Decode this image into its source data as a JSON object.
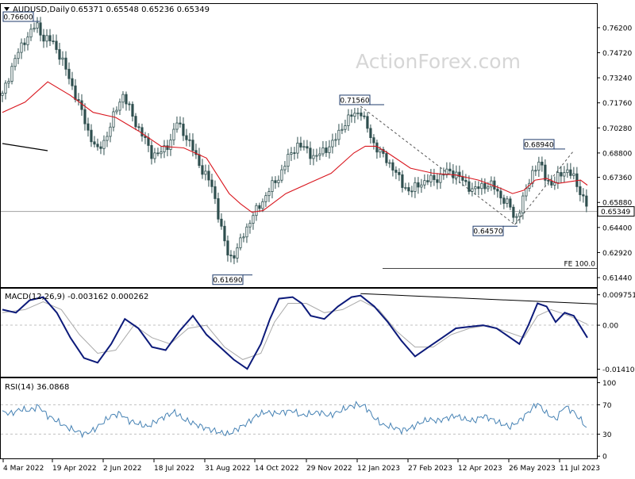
{
  "header": {
    "symbol": "AUDUSD,Daily",
    "ohlc": "0.65371 0.65548 0.65236 0.65349"
  },
  "watermark": "ActionForex.com",
  "colors": {
    "candle": "#2f4f4f",
    "ma": "#d9161e",
    "macd": "#0c1a7a",
    "signal": "#a9a9a9",
    "rsi": "#4682b4",
    "frame": "#000000",
    "grid_dashed": "#c0c0c0"
  },
  "chart_data": [
    {
      "type": "candlestick",
      "name": "price",
      "y_range": [
        0.6088,
        0.776
      ],
      "y_ticks": [
        "0.76200",
        "0.74720",
        "0.73240",
        "0.71760",
        "0.70280",
        "0.68800",
        "0.67360",
        "0.65880",
        "0.64400",
        "0.62920",
        "0.61440"
      ],
      "y_tick_values": [
        0.762,
        0.7472,
        0.7324,
        0.7176,
        0.7028,
        0.688,
        0.6736,
        0.6588,
        0.644,
        0.6292,
        0.6144
      ],
      "x_tick_labels": [
        "4 Mar 2022",
        "19 Apr 2022",
        "2 Jun 2022",
        "18 Jul 2022",
        "31 Aug 2022",
        "14 Oct 2022",
        "29 Nov 2022",
        "12 Jan 2023",
        "27 Feb 2023",
        "12 Apr 2023",
        "26 May 2023",
        "11 Jul 2023"
      ],
      "current_price": "0.65349",
      "current_value": 0.65349,
      "annotations": [
        {
          "label": "0.76600",
          "value": 0.766
        },
        {
          "label": "0.71560",
          "value": 0.7156
        },
        {
          "label": "0.61690",
          "value": 0.6169
        },
        {
          "label": "0.68940",
          "value": 0.6894
        },
        {
          "label": "0.64570",
          "value": 0.6457
        }
      ],
      "fe_label": "FE 100.0",
      "fe_value": 0.6198,
      "path": [
        [
          0,
          0.722
        ],
        [
          5,
          0.742
        ],
        [
          10,
          0.755
        ],
        [
          15,
          0.764
        ],
        [
          18,
          0.756
        ],
        [
          22,
          0.754
        ],
        [
          26,
          0.744
        ],
        [
          30,
          0.73
        ],
        [
          34,
          0.716
        ],
        [
          38,
          0.7
        ],
        [
          42,
          0.689
        ],
        [
          46,
          0.698
        ],
        [
          50,
          0.713
        ],
        [
          53,
          0.723
        ],
        [
          56,
          0.714
        ],
        [
          59,
          0.705
        ],
        [
          62,
          0.698
        ],
        [
          66,
          0.687
        ],
        [
          70,
          0.688
        ],
        [
          74,
          0.695
        ],
        [
          77,
          0.706
        ],
        [
          80,
          0.7
        ],
        [
          84,
          0.69
        ],
        [
          88,
          0.678
        ],
        [
          92,
          0.67
        ],
        [
          94,
          0.66
        ],
        [
          96,
          0.646
        ],
        [
          98,
          0.635
        ],
        [
          100,
          0.626
        ],
        [
          103,
          0.629
        ],
        [
          106,
          0.639
        ],
        [
          110,
          0.65
        ],
        [
          114,
          0.658
        ],
        [
          118,
          0.667
        ],
        [
          122,
          0.674
        ],
        [
          126,
          0.685
        ],
        [
          130,
          0.693
        ],
        [
          134,
          0.69
        ],
        [
          138,
          0.685
        ],
        [
          142,
          0.69
        ],
        [
          146,
          0.694
        ],
        [
          150,
          0.704
        ],
        [
          154,
          0.71
        ],
        [
          158,
          0.713
        ],
        [
          161,
          0.702
        ],
        [
          164,
          0.693
        ],
        [
          168,
          0.686
        ],
        [
          172,
          0.68
        ],
        [
          176,
          0.67
        ],
        [
          180,
          0.665
        ],
        [
          184,
          0.67
        ],
        [
          188,
          0.672
        ],
        [
          192,
          0.673
        ],
        [
          196,
          0.677
        ],
        [
          200,
          0.676
        ],
        [
          204,
          0.67
        ],
        [
          208,
          0.666
        ],
        [
          212,
          0.669
        ],
        [
          216,
          0.669
        ],
        [
          220,
          0.662
        ],
        [
          224,
          0.656
        ],
        [
          226,
          0.648
        ],
        [
          228,
          0.654
        ],
        [
          231,
          0.666
        ],
        [
          234,
          0.678
        ],
        [
          237,
          0.682
        ],
        [
          240,
          0.672
        ],
        [
          243,
          0.669
        ],
        [
          246,
          0.676
        ],
        [
          249,
          0.678
        ],
        [
          252,
          0.673
        ],
        [
          256,
          0.662
        ],
        [
          258,
          0.656
        ]
      ],
      "ma_path": [
        [
          0,
          0.712
        ],
        [
          10,
          0.718
        ],
        [
          20,
          0.73
        ],
        [
          30,
          0.722
        ],
        [
          40,
          0.712
        ],
        [
          50,
          0.709
        ],
        [
          60,
          0.701
        ],
        [
          70,
          0.692
        ],
        [
          80,
          0.691
        ],
        [
          90,
          0.685
        ],
        [
          100,
          0.664
        ],
        [
          105,
          0.658
        ],
        [
          110,
          0.653
        ],
        [
          115,
          0.654
        ],
        [
          125,
          0.664
        ],
        [
          135,
          0.67
        ],
        [
          145,
          0.676
        ],
        [
          155,
          0.688
        ],
        [
          160,
          0.692
        ],
        [
          165,
          0.692
        ],
        [
          170,
          0.688
        ],
        [
          180,
          0.679
        ],
        [
          190,
          0.676
        ],
        [
          200,
          0.675
        ],
        [
          210,
          0.672
        ],
        [
          220,
          0.667
        ],
        [
          225,
          0.664
        ],
        [
          230,
          0.666
        ],
        [
          235,
          0.672
        ],
        [
          240,
          0.673
        ],
        [
          245,
          0.67
        ],
        [
          250,
          0.671
        ],
        [
          255,
          0.672
        ],
        [
          258,
          0.669
        ]
      ]
    },
    {
      "type": "line",
      "name": "MACD(12,26,9) -0.003162 0.000262",
      "y_range": [
        -0.0165,
        0.0117
      ],
      "y_ticks": [
        "0.009751",
        "0.00",
        "-0.014107"
      ],
      "y_tick_values": [
        0.009751,
        0.0,
        -0.014107
      ],
      "macd_path": [
        [
          0,
          0.005
        ],
        [
          6,
          0.004
        ],
        [
          12,
          0.008
        ],
        [
          18,
          0.009
        ],
        [
          24,
          0.004
        ],
        [
          30,
          -0.004
        ],
        [
          36,
          -0.0105
        ],
        [
          42,
          -0.012
        ],
        [
          48,
          -0.006
        ],
        [
          54,
          0.002
        ],
        [
          60,
          -0.001
        ],
        [
          66,
          -0.007
        ],
        [
          72,
          -0.008
        ],
        [
          78,
          -0.002
        ],
        [
          84,
          0.003
        ],
        [
          90,
          -0.003
        ],
        [
          96,
          -0.007
        ],
        [
          102,
          -0.011
        ],
        [
          108,
          -0.014
        ],
        [
          114,
          -0.006
        ],
        [
          118,
          0.002
        ],
        [
          122,
          0.0085
        ],
        [
          128,
          0.009
        ],
        [
          132,
          0.007
        ],
        [
          136,
          0.003
        ],
        [
          142,
          0.002
        ],
        [
          148,
          0.006
        ],
        [
          154,
          0.009
        ],
        [
          158,
          0.0095
        ],
        [
          164,
          0.006
        ],
        [
          170,
          0.001
        ],
        [
          176,
          -0.005
        ],
        [
          182,
          -0.01
        ],
        [
          188,
          -0.007
        ],
        [
          194,
          -0.004
        ],
        [
          200,
          -0.001
        ],
        [
          206,
          -0.0005
        ],
        [
          212,
          0.0
        ],
        [
          218,
          -0.001
        ],
        [
          224,
          -0.004
        ],
        [
          228,
          -0.006
        ],
        [
          232,
          0.0
        ],
        [
          236,
          0.007
        ],
        [
          240,
          0.006
        ],
        [
          244,
          0.001
        ],
        [
          248,
          0.004
        ],
        [
          252,
          0.003
        ],
        [
          258,
          -0.004
        ]
      ],
      "signal_path": [
        [
          0,
          0.004
        ],
        [
          10,
          0.005
        ],
        [
          18,
          0.0075
        ],
        [
          26,
          0.005
        ],
        [
          34,
          -0.003
        ],
        [
          42,
          -0.009
        ],
        [
          50,
          -0.008
        ],
        [
          58,
          0.0
        ],
        [
          66,
          -0.004
        ],
        [
          74,
          -0.006
        ],
        [
          82,
          -0.001
        ],
        [
          90,
          0.0
        ],
        [
          98,
          -0.007
        ],
        [
          106,
          -0.011
        ],
        [
          114,
          -0.009
        ],
        [
          120,
          0.001
        ],
        [
          126,
          0.007
        ],
        [
          134,
          0.007
        ],
        [
          142,
          0.004
        ],
        [
          150,
          0.005
        ],
        [
          158,
          0.008
        ],
        [
          166,
          0.005
        ],
        [
          174,
          -0.002
        ],
        [
          182,
          -0.007
        ],
        [
          190,
          -0.007
        ],
        [
          198,
          -0.003
        ],
        [
          206,
          -0.001
        ],
        [
          214,
          0.0
        ],
        [
          222,
          -0.002
        ],
        [
          230,
          -0.004
        ],
        [
          236,
          0.003
        ],
        [
          242,
          0.005
        ],
        [
          250,
          0.003
        ],
        [
          258,
          0.0003
        ]
      ],
      "trendline": [
        [
          158,
          0.0101
        ],
        [
          258,
          0.0068
        ]
      ]
    },
    {
      "type": "line",
      "name": "RSI(14) 36.0868",
      "y_range": [
        -3,
        106
      ],
      "y_ticks": [
        "100",
        "70",
        "30",
        "0"
      ],
      "y_tick_values": [
        100,
        70,
        30,
        0
      ],
      "dashed_levels": [
        70,
        30
      ],
      "rsi_path": [
        [
          0,
          60
        ],
        [
          4,
          58
        ],
        [
          8,
          64
        ],
        [
          12,
          62
        ],
        [
          16,
          68
        ],
        [
          20,
          55
        ],
        [
          24,
          48
        ],
        [
          28,
          40
        ],
        [
          32,
          35
        ],
        [
          36,
          30
        ],
        [
          40,
          35
        ],
        [
          44,
          45
        ],
        [
          48,
          55
        ],
        [
          52,
          58
        ],
        [
          56,
          48
        ],
        [
          60,
          44
        ],
        [
          64,
          40
        ],
        [
          68,
          48
        ],
        [
          72,
          55
        ],
        [
          76,
          60
        ],
        [
          80,
          50
        ],
        [
          84,
          45
        ],
        [
          88,
          40
        ],
        [
          92,
          36
        ],
        [
          96,
          32
        ],
        [
          100,
          30
        ],
        [
          104,
          38
        ],
        [
          108,
          45
        ],
        [
          112,
          55
        ],
        [
          116,
          60
        ],
        [
          120,
          58
        ],
        [
          124,
          60
        ],
        [
          128,
          62
        ],
        [
          132,
          55
        ],
        [
          136,
          58
        ],
        [
          140,
          60
        ],
        [
          144,
          55
        ],
        [
          148,
          60
        ],
        [
          152,
          66
        ],
        [
          156,
          70
        ],
        [
          160,
          68
        ],
        [
          164,
          52
        ],
        [
          168,
          42
        ],
        [
          172,
          40
        ],
        [
          176,
          35
        ],
        [
          180,
          38
        ],
        [
          184,
          45
        ],
        [
          188,
          50
        ],
        [
          192,
          48
        ],
        [
          196,
          52
        ],
        [
          200,
          55
        ],
        [
          204,
          50
        ],
        [
          208,
          48
        ],
        [
          212,
          55
        ],
        [
          216,
          50
        ],
        [
          220,
          44
        ],
        [
          224,
          40
        ],
        [
          228,
          48
        ],
        [
          232,
          60
        ],
        [
          236,
          72
        ],
        [
          240,
          58
        ],
        [
          244,
          50
        ],
        [
          248,
          68
        ],
        [
          252,
          60
        ],
        [
          256,
          46
        ],
        [
          258,
          36
        ]
      ]
    }
  ]
}
